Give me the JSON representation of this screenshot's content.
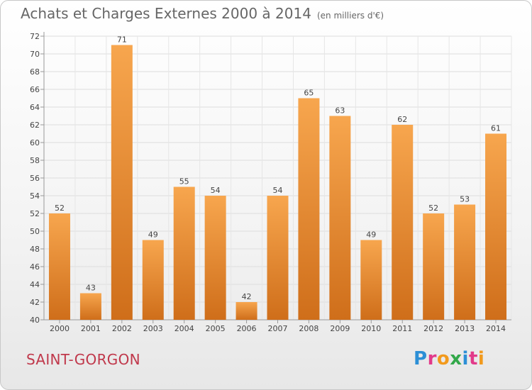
{
  "header": {
    "title": "Achats et Charges Externes 2000 à 2014",
    "unit": "(en milliers d'€)"
  },
  "footer": {
    "town": "SAINT-GORGON",
    "brand": "Proxiti"
  },
  "colors": {
    "bar_top": "#f7a64e",
    "bar_bottom": "#cf6e1a",
    "grid": "#dddddd",
    "text": "#444444"
  },
  "chart_data": {
    "type": "bar",
    "categories": [
      "2000",
      "2001",
      "2002",
      "2003",
      "2004",
      "2005",
      "2006",
      "2007",
      "2008",
      "2009",
      "2010",
      "2011",
      "2012",
      "2013",
      "2014"
    ],
    "values": [
      52,
      43,
      71,
      49,
      55,
      54,
      42,
      54,
      65,
      63,
      49,
      62,
      52,
      53,
      61
    ],
    "ylim": [
      40,
      72
    ],
    "yticks": [
      40,
      42,
      44,
      46,
      48,
      50,
      52,
      54,
      56,
      58,
      60,
      62,
      64,
      66,
      68,
      70,
      72
    ],
    "grid": true,
    "data_labels": true
  }
}
